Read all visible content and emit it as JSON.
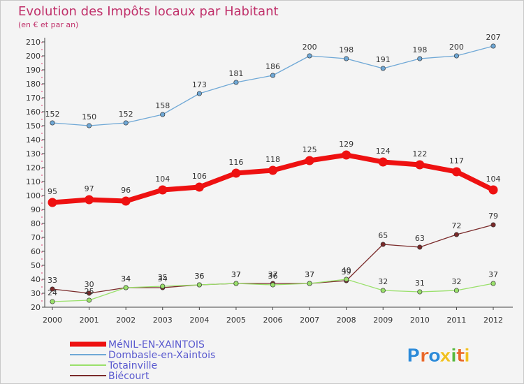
{
  "chart_data": {
    "type": "line",
    "title": "Evolution des Impôts locaux par Habitant",
    "subtitle": "(en € et par an)",
    "categories": [
      "2000",
      "2001",
      "2002",
      "2003",
      "2004",
      "2005",
      "2006",
      "2007",
      "2008",
      "2009",
      "2010",
      "2011",
      "2012"
    ],
    "ylim": [
      20,
      210
    ],
    "yticks": [
      20,
      30,
      40,
      50,
      60,
      70,
      80,
      90,
      100,
      110,
      120,
      130,
      140,
      150,
      160,
      170,
      180,
      190,
      200,
      210
    ],
    "grid": false,
    "legend_position": "bottom-left",
    "series": [
      {
        "name": "MéNIL-EN-XAINTOIS",
        "color": "#ee1111",
        "values": [
          95,
          97,
          96,
          104,
          106,
          116,
          118,
          125,
          129,
          124,
          122,
          117,
          104
        ]
      },
      {
        "name": "Dombasle-en-Xaintois",
        "color": "#6fa8d6",
        "values": [
          152,
          150,
          152,
          158,
          173,
          181,
          186,
          200,
          198,
          191,
          198,
          200,
          207
        ]
      },
      {
        "name": "Totainville",
        "color": "#99e06a",
        "values": [
          24,
          25,
          34,
          35,
          36,
          37,
          36,
          37,
          40,
          32,
          31,
          32,
          37
        ]
      },
      {
        "name": "Biécourt",
        "color": "#7a2a2a",
        "values": [
          33,
          30,
          34,
          34,
          36,
          37,
          37,
          37,
          39,
          65,
          63,
          72,
          79
        ]
      }
    ]
  },
  "brand": {
    "logo_text": "Proxiti",
    "letters": [
      "P",
      "r",
      "o",
      "x",
      "i",
      "t",
      "i"
    ],
    "letter_colors": [
      "#2c8ad8",
      "#e8682a",
      "#2c8ad8",
      "#f0c020",
      "#58b840",
      "#e8682a",
      "#f0c020"
    ]
  }
}
